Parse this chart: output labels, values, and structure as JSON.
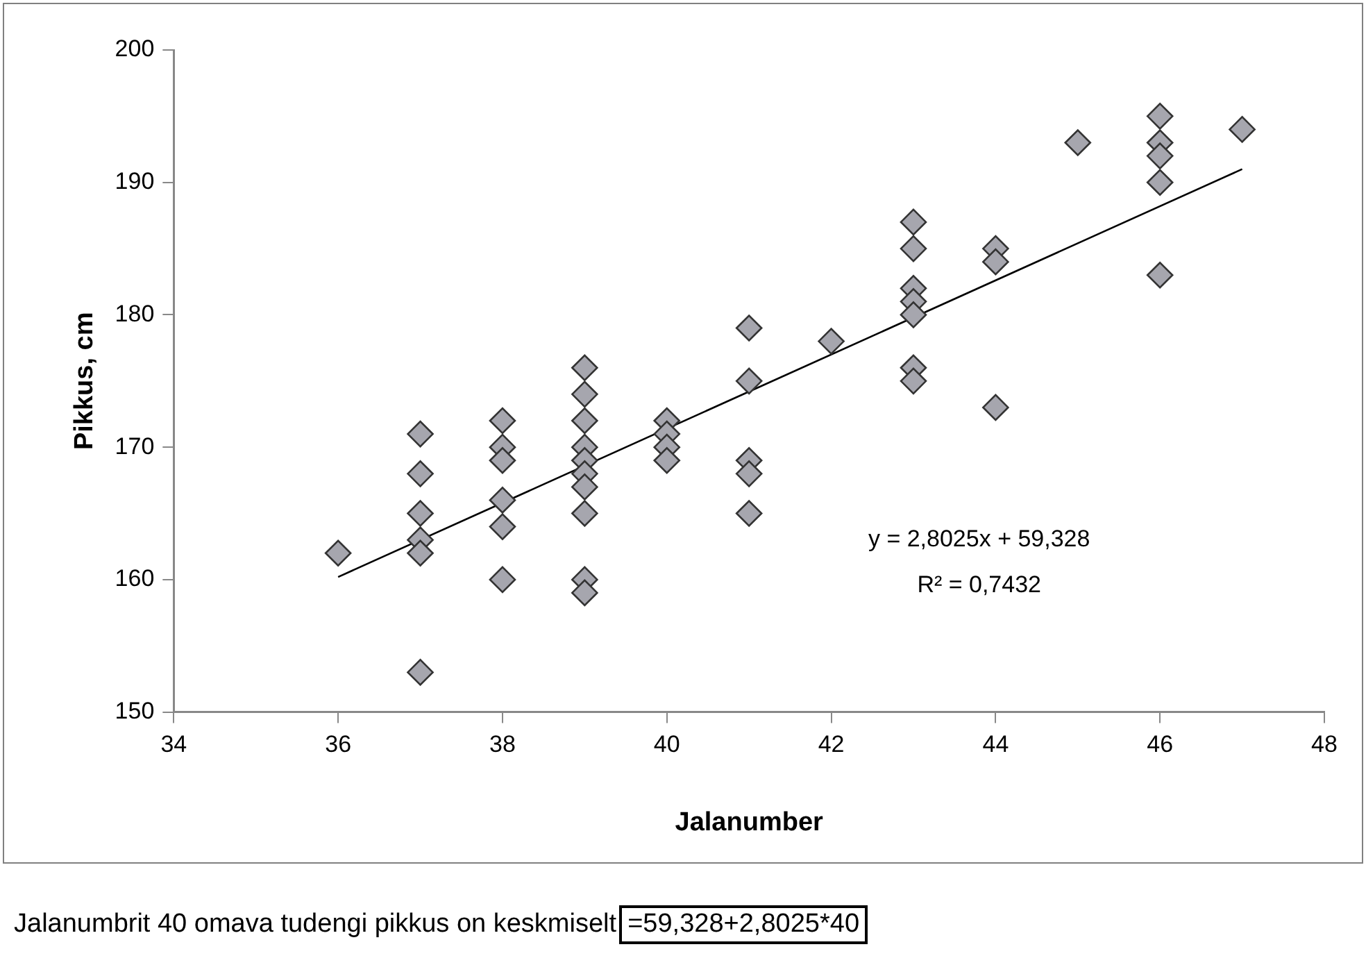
{
  "chart_data": {
    "type": "scatter",
    "xlabel": "Jalanumber",
    "ylabel": "Pikkus, cm",
    "xlim": [
      34,
      48
    ],
    "xticks": [
      34,
      36,
      38,
      40,
      42,
      44,
      46,
      48
    ],
    "ylim": [
      150,
      200
    ],
    "yticks": [
      150,
      160,
      170,
      180,
      190,
      200
    ],
    "grid": false,
    "legend": false,
    "marker": "diamond",
    "series": [
      {
        "color": "#a6a6ae",
        "x": [
          36,
          37,
          37,
          37,
          37,
          37,
          37,
          38,
          38,
          38,
          38,
          38,
          38,
          39,
          39,
          39,
          39,
          39,
          39,
          39,
          39,
          39,
          39,
          40,
          40,
          40,
          40,
          41,
          41,
          41,
          41,
          41,
          42,
          43,
          43,
          43,
          43,
          43,
          43,
          43,
          44,
          44,
          44,
          45,
          46,
          46,
          46,
          46,
          46,
          47
        ],
        "values": [
          162,
          171,
          168,
          165,
          163,
          162,
          153,
          172,
          170,
          169,
          166,
          164,
          160,
          176,
          174,
          172,
          170,
          169,
          168,
          167,
          165,
          160,
          159,
          172,
          171,
          170,
          169,
          179,
          175,
          169,
          168,
          165,
          178,
          187,
          185,
          182,
          181,
          180,
          176,
          175,
          185,
          184,
          173,
          193,
          195,
          193,
          192,
          190,
          183,
          194
        ]
      },
      {
        "type": "line",
        "color": "#000000",
        "line_style": "solid",
        "marker": "none",
        "x": [
          36,
          47
        ],
        "values": [
          160.2,
          191.0
        ]
      }
    ],
    "annotations": [
      "y = 2,8025x + 59,328",
      "R² = 0,7432",
      "Jalanumbrit 40 omava tudengi pikkus on keskmiselt",
      "=59,328+2,8025*40"
    ]
  }
}
